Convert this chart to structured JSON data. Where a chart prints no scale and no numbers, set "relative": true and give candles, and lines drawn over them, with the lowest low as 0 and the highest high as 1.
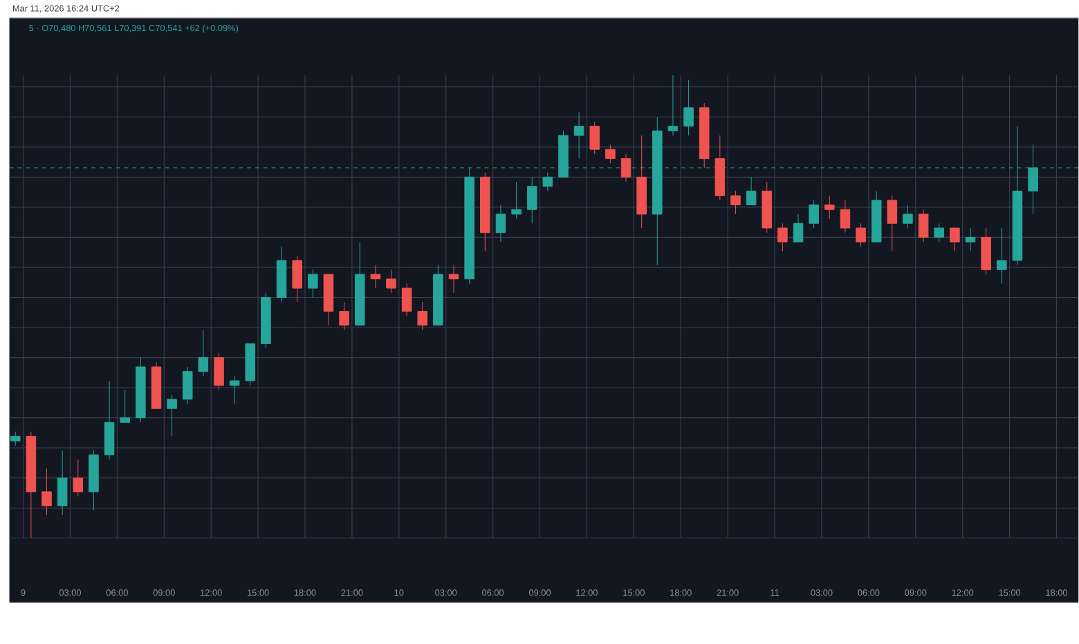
{
  "chart_data": {
    "type": "candlestick",
    "relative": true,
    "annotations": [
      "Mar 11, 2026 16:24 UTC+2",
      "5 · O70,480 H70,561 L70,391 C70,541 +62 (+0.09%)"
    ],
    "x": [
      "2026-03-08T23:30",
      "2026-03-09T00:30",
      "2026-03-09T01:30",
      "2026-03-09T02:30",
      "2026-03-09T03:30",
      "2026-03-09T04:30",
      "2026-03-09T05:30",
      "2026-03-09T06:30",
      "2026-03-09T07:30",
      "2026-03-09T08:30",
      "2026-03-09T09:30",
      "2026-03-09T10:30",
      "2026-03-09T11:30",
      "2026-03-09T12:30",
      "2026-03-09T13:30",
      "2026-03-09T14:30",
      "2026-03-09T15:30",
      "2026-03-09T16:30",
      "2026-03-09T17:30",
      "2026-03-09T18:30",
      "2026-03-09T19:30",
      "2026-03-09T20:30",
      "2026-03-09T21:30",
      "2026-03-09T22:30",
      "2026-03-09T23:30",
      "2026-03-10T00:30",
      "2026-03-10T01:30",
      "2026-03-10T02:30",
      "2026-03-10T03:30",
      "2026-03-10T04:30",
      "2026-03-10T05:30",
      "2026-03-10T06:30",
      "2026-03-10T07:30",
      "2026-03-10T08:30",
      "2026-03-10T09:30",
      "2026-03-10T10:30",
      "2026-03-10T11:30",
      "2026-03-10T12:30",
      "2026-03-10T13:30",
      "2026-03-10T14:30",
      "2026-03-10T15:30",
      "2026-03-10T16:30",
      "2026-03-10T17:30",
      "2026-03-10T18:30",
      "2026-03-10T19:30",
      "2026-03-10T20:30",
      "2026-03-10T21:30",
      "2026-03-10T22:30",
      "2026-03-10T23:30",
      "2026-03-11T00:30",
      "2026-03-11T01:30",
      "2026-03-11T02:30",
      "2026-03-11T03:30",
      "2026-03-11T04:30",
      "2026-03-11T05:30",
      "2026-03-11T06:30",
      "2026-03-11T07:30",
      "2026-03-11T08:30",
      "2026-03-11T09:30",
      "2026-03-11T10:30",
      "2026-03-11T11:30",
      "2026-03-11T12:30",
      "2026-03-11T13:30",
      "2026-03-11T14:30",
      "2026-03-11T15:30",
      "2026-03-11T16:30"
    ],
    "ohlc": [
      [
        0.21,
        0.23,
        0.2,
        0.22
      ],
      [
        0.22,
        0.23,
        0,
        0.1
      ],
      [
        0.1,
        0.15,
        0.05,
        0.07
      ],
      [
        0.07,
        0.19,
        0.05,
        0.13
      ],
      [
        0.13,
        0.17,
        0.09,
        0.1
      ],
      [
        0.1,
        0.19,
        0.06,
        0.18
      ],
      [
        0.18,
        0.34,
        0.17,
        0.25
      ],
      [
        0.25,
        0.32,
        0.25,
        0.26
      ],
      [
        0.26,
        0.39,
        0.25,
        0.37
      ],
      [
        0.37,
        0.38,
        0.28,
        0.28
      ],
      [
        0.28,
        0.31,
        0.22,
        0.3
      ],
      [
        0.3,
        0.37,
        0.29,
        0.36
      ],
      [
        0.36,
        0.45,
        0.35,
        0.39
      ],
      [
        0.39,
        0.4,
        0.32,
        0.33
      ],
      [
        0.33,
        0.35,
        0.29,
        0.34
      ],
      [
        0.34,
        0.42,
        0.33,
        0.42
      ],
      [
        0.42,
        0.53,
        0.41,
        0.52
      ],
      [
        0.52,
        0.63,
        0.51,
        0.6
      ],
      [
        0.6,
        0.61,
        0.51,
        0.54
      ],
      [
        0.54,
        0.58,
        0.52,
        0.57
      ],
      [
        0.57,
        0.57,
        0.46,
        0.49
      ],
      [
        0.49,
        0.51,
        0.45,
        0.46
      ],
      [
        0.46,
        0.64,
        0.46,
        0.57
      ],
      [
        0.57,
        0.59,
        0.54,
        0.56
      ],
      [
        0.56,
        0.58,
        0.53,
        0.54
      ],
      [
        0.54,
        0.55,
        0.48,
        0.49
      ],
      [
        0.49,
        0.51,
        0.45,
        0.46
      ],
      [
        0.46,
        0.59,
        0.46,
        0.57
      ],
      [
        0.57,
        0.59,
        0.53,
        0.56
      ],
      [
        0.56,
        0.8,
        0.55,
        0.78
      ],
      [
        0.78,
        0.79,
        0.62,
        0.66
      ],
      [
        0.66,
        0.72,
        0.64,
        0.7
      ],
      [
        0.7,
        0.77,
        0.69,
        0.71
      ],
      [
        0.71,
        0.78,
        0.68,
        0.76
      ],
      [
        0.76,
        0.79,
        0.75,
        0.78
      ],
      [
        0.78,
        0.88,
        0.78,
        0.87
      ],
      [
        0.87,
        0.92,
        0.82,
        0.89
      ],
      [
        0.89,
        0.9,
        0.83,
        0.84
      ],
      [
        0.84,
        0.85,
        0.81,
        0.82
      ],
      [
        0.82,
        0.83,
        0.77,
        0.78
      ],
      [
        0.78,
        0.87,
        0.67,
        0.7
      ],
      [
        0.7,
        0.91,
        0.59,
        0.88
      ],
      [
        0.88,
        1,
        0.87,
        0.89
      ],
      [
        0.89,
        0.99,
        0.87,
        0.93
      ],
      [
        0.93,
        0.94,
        0.8,
        0.82
      ],
      [
        0.82,
        0.87,
        0.73,
        0.74
      ],
      [
        0.74,
        0.75,
        0.7,
        0.72
      ],
      [
        0.72,
        0.78,
        0.72,
        0.75
      ],
      [
        0.75,
        0.77,
        0.66,
        0.67
      ],
      [
        0.67,
        0.68,
        0.62,
        0.64
      ],
      [
        0.64,
        0.7,
        0.64,
        0.68
      ],
      [
        0.68,
        0.73,
        0.67,
        0.72
      ],
      [
        0.72,
        0.74,
        0.69,
        0.71
      ],
      [
        0.71,
        0.73,
        0.66,
        0.67
      ],
      [
        0.67,
        0.68,
        0.63,
        0.64
      ],
      [
        0.64,
        0.75,
        0.64,
        0.73
      ],
      [
        0.73,
        0.74,
        0.62,
        0.68
      ],
      [
        0.68,
        0.72,
        0.67,
        0.7
      ],
      [
        0.7,
        0.71,
        0.64,
        0.65
      ],
      [
        0.65,
        0.68,
        0.64,
        0.67
      ],
      [
        0.67,
        0.67,
        0.62,
        0.64
      ],
      [
        0.64,
        0.67,
        0.62,
        0.65
      ],
      [
        0.65,
        0.67,
        0.57,
        0.58
      ],
      [
        0.58,
        0.67,
        0.55,
        0.6
      ],
      [
        0.6,
        0.89,
        0.59,
        0.75
      ],
      [
        0.75,
        0.85,
        0.7,
        0.8
      ]
    ],
    "colors": [
      "#26a69a",
      "#ef5350",
      "#ef5350",
      "#26a69a",
      "#ef5350",
      "#26a69a",
      "#26a69a",
      "#26a69a",
      "#26a69a",
      "#ef5350",
      "#26a69a",
      "#26a69a",
      "#26a69a",
      "#ef5350",
      "#26a69a",
      "#26a69a",
      "#26a69a",
      "#26a69a",
      "#ef5350",
      "#26a69a",
      "#ef5350",
      "#ef5350",
      "#26a69a",
      "#ef5350",
      "#ef5350",
      "#ef5350",
      "#ef5350",
      "#26a69a",
      "#ef5350",
      "#26a69a",
      "#ef5350",
      "#26a69a",
      "#26a69a",
      "#26a69a",
      "#26a69a",
      "#26a69a",
      "#26a69a",
      "#ef5350",
      "#ef5350",
      "#ef5350",
      "#ef5350",
      "#26a69a",
      "#26a69a",
      "#26a69a",
      "#ef5350",
      "#ef5350",
      "#ef5350",
      "#26a69a",
      "#ef5350",
      "#ef5350",
      "#26a69a",
      "#26a69a",
      "#ef5350",
      "#ef5350",
      "#ef5350",
      "#26a69a",
      "#ef5350",
      "#26a69a",
      "#ef5350",
      "#26a69a",
      "#ef5350",
      "#26a69a",
      "#ef5350",
      "#26a69a",
      "#26a69a",
      "#26a69a"
    ],
    "xlim": [
      "2026-03-08T23:07",
      "2026-03-11T19:24"
    ],
    "xticks": [
      {
        "value": "2026-03-09",
        "label": "9"
      },
      {
        "value": "2026-03-09T03:00",
        "label": "03:00"
      },
      {
        "value": "2026-03-09T06:00",
        "label": "06:00"
      },
      {
        "value": "2026-03-09T09:00",
        "label": "09:00"
      },
      {
        "value": "2026-03-09T12:00",
        "label": "12:00"
      },
      {
        "value": "2026-03-09T15:00",
        "label": "15:00"
      },
      {
        "value": "2026-03-09T18:00",
        "label": "18:00"
      },
      {
        "value": "2026-03-09T21:00",
        "label": "21:00"
      },
      {
        "value": "2026-03-10",
        "label": "10"
      },
      {
        "value": "2026-03-10T03:00",
        "label": "03:00"
      },
      {
        "value": "2026-03-10T06:00",
        "label": "06:00"
      },
      {
        "value": "2026-03-10T09:00",
        "label": "09:00"
      },
      {
        "value": "2026-03-10T12:00",
        "label": "12:00"
      },
      {
        "value": "2026-03-10T15:00",
        "label": "15:00"
      },
      {
        "value": "2026-03-10T18:00",
        "label": "18:00"
      },
      {
        "value": "2026-03-10T21:00",
        "label": "21:00"
      },
      {
        "value": "2026-03-11",
        "label": "11"
      },
      {
        "value": "2026-03-11T03:00",
        "label": "03:00"
      },
      {
        "value": "2026-03-11T06:00",
        "label": "06:00"
      },
      {
        "value": "2026-03-11T09:00",
        "label": "09:00"
      },
      {
        "value": "2026-03-11T12:00",
        "label": "12:00"
      },
      {
        "value": "2026-03-11T15:00",
        "label": "15:00"
      },
      {
        "value": "2026-03-11T18:00",
        "label": "18:00"
      }
    ],
    "ref_lines": [
      {
        "axis": "y",
        "value": 0.8,
        "color": "#26a69a",
        "line_style": "dashed"
      }
    ],
    "grid": true
  }
}
